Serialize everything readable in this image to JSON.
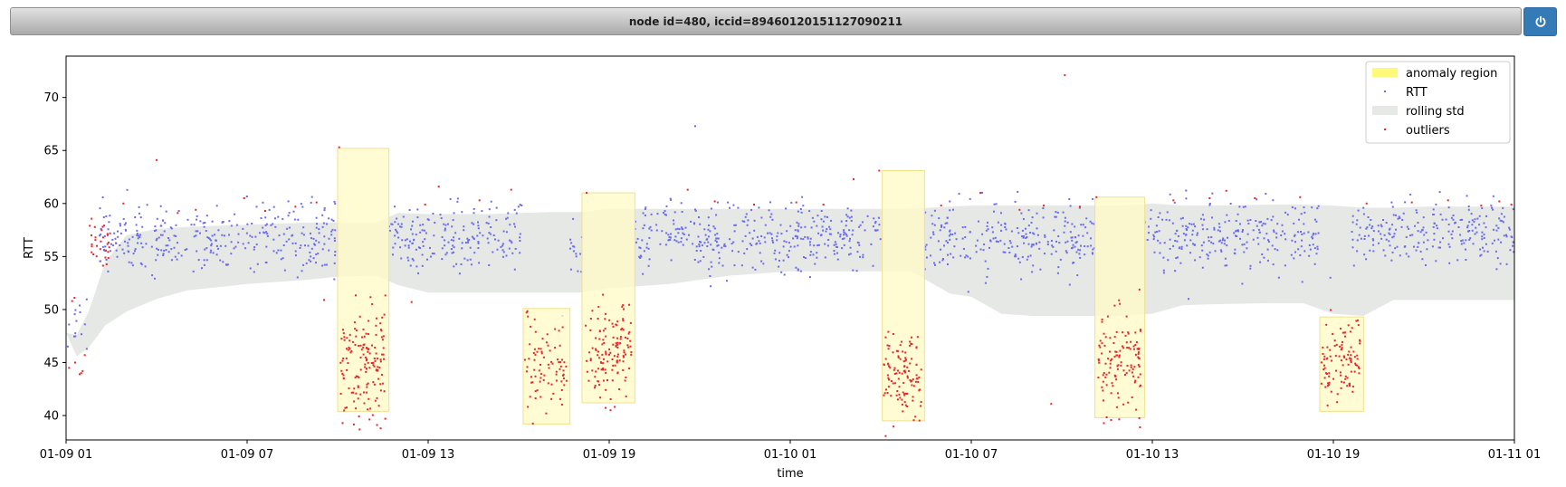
{
  "window": {
    "title": "node id=480, iccid=89460120151127090211",
    "power_icon": "power-icon"
  },
  "colors": {
    "rtt": "#6b6bf0",
    "outliers": "#e8262b",
    "anomaly_fill": "#fffbc8",
    "anomaly_edge": "#efe18a",
    "anomaly_legend": "#fff97a",
    "rolling_std": "#e6e8e6",
    "power_button": "#337ab7"
  },
  "chart_data": {
    "type": "scatter",
    "title": "",
    "xlabel": "time",
    "ylabel": "RTT",
    "x_range_hours": [
      0,
      48
    ],
    "x_origin": "01-09 01",
    "xticks": [
      {
        "h": 0,
        "label": "01-09 01"
      },
      {
        "h": 6,
        "label": "01-09 07"
      },
      {
        "h": 12,
        "label": "01-09 13"
      },
      {
        "h": 18,
        "label": "01-09 19"
      },
      {
        "h": 24,
        "label": "01-10 01"
      },
      {
        "h": 30,
        "label": "01-10 07"
      },
      {
        "h": 36,
        "label": "01-10 13"
      },
      {
        "h": 42,
        "label": "01-10 19"
      },
      {
        "h": 48,
        "label": "01-11 01"
      }
    ],
    "ylim": [
      37.7,
      73.9
    ],
    "yticks": [
      40,
      45,
      50,
      55,
      60,
      65,
      70
    ],
    "legend": {
      "position": "top-right",
      "entries": [
        "anomaly region",
        "RTT",
        "rolling std",
        "outliers"
      ]
    },
    "rolling_std": {
      "name": "rolling std",
      "x": [
        0,
        0.35,
        0.75,
        1.3,
        2,
        3,
        4,
        6,
        8,
        9,
        10.3,
        11,
        12,
        14,
        16,
        17,
        18,
        20,
        22,
        24,
        25,
        26,
        27,
        28,
        29.3,
        30,
        31,
        32,
        33,
        34,
        35,
        36,
        37,
        38,
        40,
        41,
        42,
        43,
        44,
        45,
        46,
        47,
        48
      ],
      "upper": [
        47.8,
        47.6,
        49.8,
        54.5,
        57.0,
        57.6,
        57.8,
        58.0,
        58.2,
        58.2,
        58.2,
        59.1,
        59.0,
        59.0,
        59.2,
        59.2,
        59.5,
        59.5,
        59.5,
        59.5,
        59.5,
        59.5,
        59.5,
        59.5,
        59.7,
        59.8,
        59.8,
        59.8,
        59.8,
        59.8,
        59.8,
        60.0,
        59.8,
        59.8,
        59.9,
        59.9,
        59.8,
        59.6,
        59.6,
        59.7,
        59.7,
        59.7,
        59.7
      ],
      "lower": [
        47.8,
        45.6,
        46.4,
        48.5,
        49.8,
        51.0,
        51.8,
        52.4,
        52.8,
        53.1,
        53.2,
        52.3,
        51.6,
        51.6,
        51.6,
        51.6,
        52.0,
        52.4,
        53.2,
        53.6,
        53.6,
        53.6,
        53.6,
        53.6,
        51.5,
        51.2,
        49.6,
        49.4,
        49.4,
        49.4,
        49.4,
        49.6,
        50.4,
        50.5,
        50.6,
        50.6,
        49.6,
        49.4,
        50.9,
        50.9,
        50.9,
        50.9,
        50.9
      ]
    },
    "anomaly_regions": [
      {
        "x0": 9.0,
        "x1": 10.7,
        "y0": 40.4,
        "y1": 65.2
      },
      {
        "x0": 15.15,
        "x1": 16.7,
        "y0": 39.2,
        "y1": 50.1
      },
      {
        "x0": 17.1,
        "x1": 18.85,
        "y0": 41.2,
        "y1": 61.0
      },
      {
        "x0": 27.05,
        "x1": 28.45,
        "y0": 39.5,
        "y1": 63.1
      },
      {
        "x0": 34.1,
        "x1": 35.75,
        "y0": 39.8,
        "y1": 60.6
      },
      {
        "x0": 41.55,
        "x1": 43.0,
        "y0": 40.4,
        "y1": 49.3
      }
    ],
    "rtt": {
      "name": "RTT",
      "normal_segments": [
        {
          "x0": 0.05,
          "x1": 0.75,
          "center": 48.8,
          "spread": 1.5,
          "count": 14
        },
        {
          "x0": 1.1,
          "x1": 9.0,
          "center": 56.8,
          "spread": 1.6,
          "count": 330
        },
        {
          "x0": 10.7,
          "x1": 15.15,
          "center": 56.9,
          "spread": 1.6,
          "count": 190
        },
        {
          "x0": 16.7,
          "x1": 17.1,
          "center": 55.5,
          "spread": 1.6,
          "count": 14
        },
        {
          "x0": 18.85,
          "x1": 27.05,
          "center": 56.8,
          "spread": 1.5,
          "count": 360
        },
        {
          "x0": 28.45,
          "x1": 34.1,
          "center": 56.7,
          "spread": 1.6,
          "count": 240
        },
        {
          "x0": 35.75,
          "x1": 41.55,
          "center": 57.0,
          "spread": 1.6,
          "count": 250
        },
        {
          "x0": 42.6,
          "x1": 48.0,
          "center": 57.2,
          "spread": 1.5,
          "count": 230
        }
      ],
      "isolated_points": [
        {
          "x": 20.85,
          "y": 67.3
        },
        {
          "x": 37.2,
          "y": 51.0
        },
        {
          "x": 16.45,
          "y": 49.4
        },
        {
          "x": 41.9,
          "y": 53.0
        }
      ]
    },
    "outliers": {
      "name": "outliers",
      "region_clusters": [
        {
          "x0": 9.1,
          "x1": 10.6,
          "center": 45.0,
          "spread": 2.6,
          "count": 150
        },
        {
          "x0": 15.2,
          "x1": 16.6,
          "center": 44.8,
          "spread": 2.3,
          "count": 80
        },
        {
          "x0": 17.2,
          "x1": 18.75,
          "center": 45.7,
          "spread": 2.2,
          "count": 130
        },
        {
          "x0": 27.1,
          "x1": 28.35,
          "center": 43.6,
          "spread": 2.2,
          "count": 110
        },
        {
          "x0": 34.2,
          "x1": 35.65,
          "center": 45.0,
          "spread": 2.6,
          "count": 120
        },
        {
          "x0": 41.6,
          "x1": 42.9,
          "center": 45.0,
          "spread": 2.2,
          "count": 100
        }
      ],
      "startup_cluster": {
        "x0": 0.7,
        "x1": 1.5,
        "center": 56.5,
        "spread": 1.2,
        "count": 30
      },
      "early_low": [
        {
          "x": 0.1,
          "y": 44.5
        },
        {
          "x": 0.3,
          "y": 45.0
        },
        {
          "x": 0.45,
          "y": 43.9
        },
        {
          "x": 0.55,
          "y": 44.2
        },
        {
          "x": 0.62,
          "y": 45.7
        },
        {
          "x": 0.2,
          "y": 50.8
        },
        {
          "x": 0.28,
          "y": 51.1
        },
        {
          "x": 0.5,
          "y": 44.0
        }
      ],
      "scattered": [
        {
          "x": 3.0,
          "y": 64.1
        },
        {
          "x": 9.05,
          "y": 65.3
        },
        {
          "x": 8.55,
          "y": 50.9
        },
        {
          "x": 11.45,
          "y": 50.7
        },
        {
          "x": 12.35,
          "y": 61.6
        },
        {
          "x": 14.75,
          "y": 61.3
        },
        {
          "x": 17.25,
          "y": 61.0
        },
        {
          "x": 20.6,
          "y": 61.3
        },
        {
          "x": 26.95,
          "y": 63.1
        },
        {
          "x": 26.1,
          "y": 62.3
        },
        {
          "x": 33.1,
          "y": 72.1
        },
        {
          "x": 32.65,
          "y": 41.1
        },
        {
          "x": 34.15,
          "y": 60.6
        },
        {
          "x": 38.45,
          "y": 61.2
        },
        {
          "x": 40.9,
          "y": 60.6
        },
        {
          "x": 30.3,
          "y": 61.0
        },
        {
          "x": 3.7,
          "y": 59.1
        },
        {
          "x": 5.9,
          "y": 60.5
        },
        {
          "x": 1.9,
          "y": 60.0
        },
        {
          "x": 4.3,
          "y": 59.4
        },
        {
          "x": 6.6,
          "y": 59.3
        },
        {
          "x": 7.6,
          "y": 59.7
        },
        {
          "x": 8.3,
          "y": 60.1
        },
        {
          "x": 11.9,
          "y": 59.9
        },
        {
          "x": 13.7,
          "y": 60.3
        },
        {
          "x": 21.5,
          "y": 60.2
        },
        {
          "x": 22.8,
          "y": 59.9
        },
        {
          "x": 24.2,
          "y": 60.1
        },
        {
          "x": 25.1,
          "y": 59.9
        },
        {
          "x": 29.0,
          "y": 59.8
        },
        {
          "x": 31.6,
          "y": 59.4
        },
        {
          "x": 32.4,
          "y": 59.8
        },
        {
          "x": 33.6,
          "y": 59.7
        },
        {
          "x": 36.7,
          "y": 60.3
        },
        {
          "x": 37.9,
          "y": 60.5
        },
        {
          "x": 39.4,
          "y": 60.5
        },
        {
          "x": 43.1,
          "y": 60.0
        },
        {
          "x": 44.6,
          "y": 60.1
        },
        {
          "x": 45.8,
          "y": 60.3
        },
        {
          "x": 46.9,
          "y": 59.8
        },
        {
          "x": 47.9,
          "y": 59.9
        },
        {
          "x": 47.5,
          "y": 60.2
        }
      ]
    }
  }
}
